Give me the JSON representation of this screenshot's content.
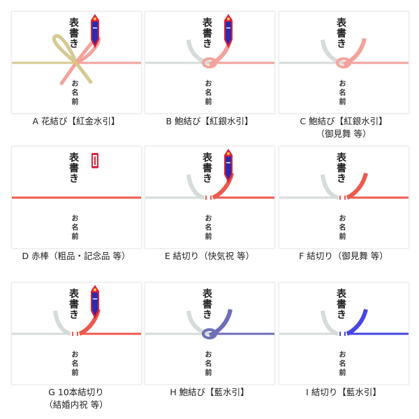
{
  "card_text": {
    "omote": "表書き",
    "namae": "お名前"
  },
  "colors": {
    "red": "#ec5a4e",
    "pink": "#f2a39c",
    "silver": "#d6dcd9",
    "gold": "#d6c990",
    "navy": "#6e6eb8",
    "blue": "#4646e6",
    "noshi_red": "#e0203a",
    "noshi_blue": "#2a2ab0"
  },
  "items": [
    {
      "knot": "hana",
      "left": "gold",
      "right": "pink",
      "noshi": "full",
      "label": [
        "A 花結び【紅金水引】"
      ]
    },
    {
      "knot": "awabi",
      "left": "silver",
      "right": "pink",
      "noshi": "full",
      "label": [
        "B 鮑結び【紅銀水引】"
      ]
    },
    {
      "knot": "awabi",
      "left": "silver",
      "right": "pink",
      "noshi": "none",
      "label": [
        "C 鮑結び【紅銀水引】",
        "（御見舞 等）"
      ]
    },
    {
      "knot": "akabo",
      "left": "red",
      "right": "red",
      "noshi": "small",
      "label": [
        "D 赤棒（粗品・記念品 等）"
      ]
    },
    {
      "knot": "musubikiri",
      "left": "silver",
      "right": "red",
      "noshi": "full",
      "label": [
        "E 結切り（快気祝 等）"
      ]
    },
    {
      "knot": "musubikiri",
      "left": "silver",
      "right": "red",
      "noshi": "none",
      "label": [
        "F 結切り（御見舞 等）"
      ]
    },
    {
      "knot": "musubikiri",
      "left": "silver",
      "right": "red",
      "noshi": "full",
      "label": [
        "G 10本結切り",
        "（結婚内祝 等）"
      ]
    },
    {
      "knot": "awabi",
      "left": "silver",
      "right": "navy",
      "noshi": "none",
      "label": [
        "H 鮑結び【藍水引】"
      ]
    },
    {
      "knot": "musubikiri",
      "left": "silver",
      "right": "blue",
      "noshi": "none",
      "label": [
        "I 結切り【藍水引】"
      ]
    }
  ]
}
